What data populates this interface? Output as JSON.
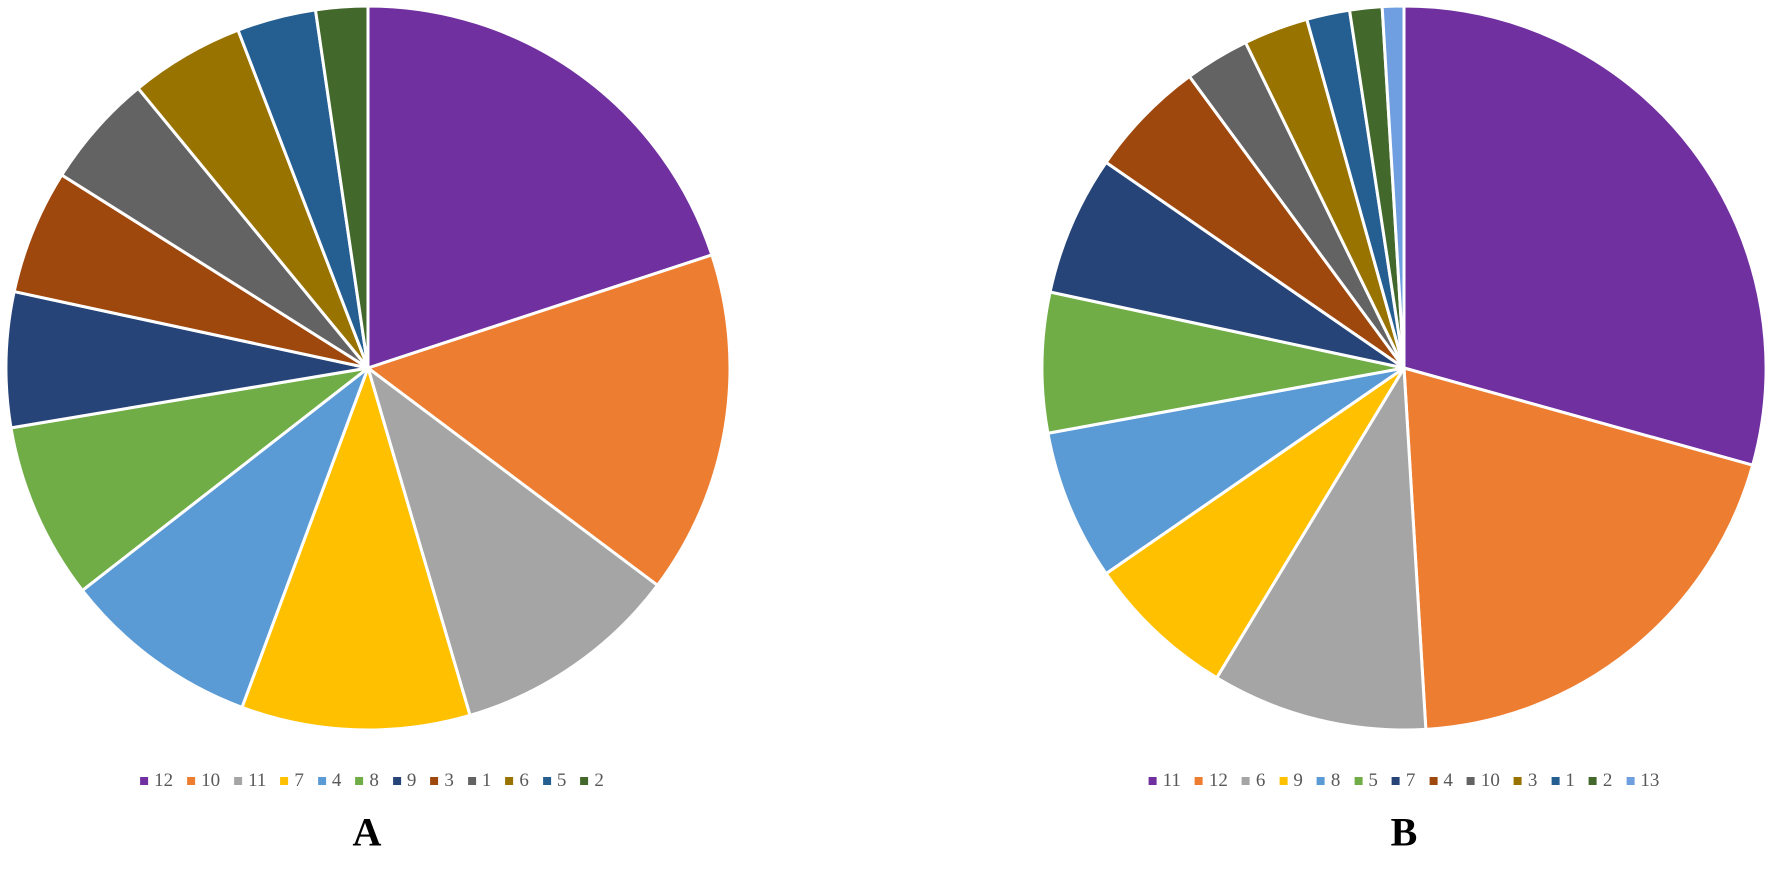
{
  "chart_data": [
    {
      "type": "pie",
      "title": "",
      "panel_label": "A",
      "legend_position": "bottom",
      "categories": [
        "12",
        "10",
        "11",
        "7",
        "4",
        "8",
        "9",
        "3",
        "1",
        "6",
        "5",
        "2"
      ],
      "values": [
        21.5,
        16.5,
        11.0,
        11.0,
        9.5,
        8.5,
        6.5,
        6.0,
        5.5,
        5.5,
        3.8,
        2.5
      ],
      "colors": [
        "#7030A0",
        "#ED7D31",
        "#A5A5A5",
        "#FFC000",
        "#5B9BD5",
        "#70AD47",
        "#264478",
        "#9E480E",
        "#636363",
        "#997300",
        "#255E91",
        "#43682B"
      ]
    },
    {
      "type": "pie",
      "title": "",
      "panel_label": "B",
      "legend_position": "bottom",
      "categories": [
        "11",
        "12",
        "6",
        "9",
        "8",
        "5",
        "7",
        "4",
        "10",
        "3",
        "1",
        "2",
        "13"
      ],
      "values": [
        30.5,
        20.5,
        10.0,
        7.0,
        7.0,
        6.5,
        6.5,
        5.5,
        3.0,
        3.0,
        2.0,
        1.5,
        1.0
      ],
      "colors": [
        "#7030A0",
        "#ED7D31",
        "#A5A5A5",
        "#FFC000",
        "#5B9BD5",
        "#70AD47",
        "#264478",
        "#9E480E",
        "#636363",
        "#997300",
        "#255E91",
        "#43682B",
        "#6F9FE0"
      ]
    }
  ]
}
